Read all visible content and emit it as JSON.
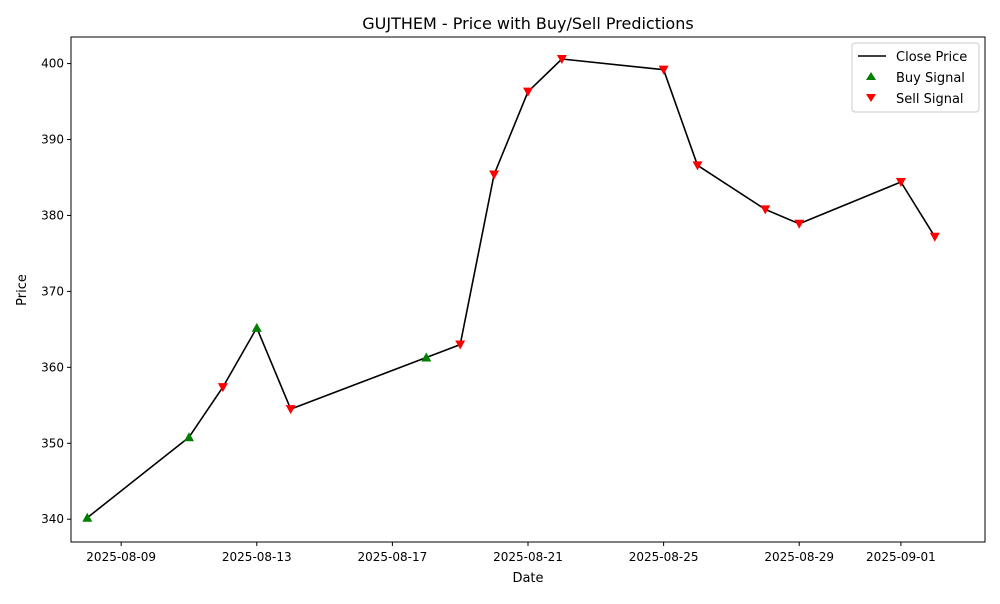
{
  "chart_data": {
    "type": "line",
    "title": "GUJTHEM - Price with Buy/Sell Predictions",
    "xlabel": "Date",
    "ylabel": "Price",
    "xlim": [
      "2025-08-07",
      "2025-09-03"
    ],
    "ylim": [
      337.0,
      403.5
    ],
    "x_ticks": [
      "2025-08-09",
      "2025-08-13",
      "2025-08-17",
      "2025-08-21",
      "2025-08-25",
      "2025-08-29",
      "2025-09-01"
    ],
    "y_ticks": [
      340,
      350,
      360,
      370,
      380,
      390,
      400
    ],
    "grid": false,
    "legend_position": "top-right",
    "series": [
      {
        "name": "Close Price",
        "kind": "line",
        "color": "#000000",
        "points": [
          {
            "x": "2025-08-08",
            "y": 340.2
          },
          {
            "x": "2025-08-11",
            "y": 350.8
          },
          {
            "x": "2025-08-12",
            "y": 357.4
          },
          {
            "x": "2025-08-13",
            "y": 365.2
          },
          {
            "x": "2025-08-14",
            "y": 354.5
          },
          {
            "x": "2025-08-18",
            "y": 361.3
          },
          {
            "x": "2025-08-19",
            "y": 363.0
          },
          {
            "x": "2025-08-20",
            "y": 385.4
          },
          {
            "x": "2025-08-21",
            "y": 396.3
          },
          {
            "x": "2025-08-22",
            "y": 400.6
          },
          {
            "x": "2025-08-25",
            "y": 399.2
          },
          {
            "x": "2025-08-26",
            "y": 386.6
          },
          {
            "x": "2025-08-28",
            "y": 380.8
          },
          {
            "x": "2025-08-29",
            "y": 378.9
          },
          {
            "x": "2025-09-01",
            "y": 384.4
          },
          {
            "x": "2025-09-02",
            "y": 377.2
          }
        ]
      },
      {
        "name": "Buy Signal",
        "kind": "scatter",
        "marker": "triangle-up",
        "color": "#008000",
        "points": [
          {
            "x": "2025-08-08",
            "y": 340.2
          },
          {
            "x": "2025-08-11",
            "y": 350.8
          },
          {
            "x": "2025-08-13",
            "y": 365.2
          },
          {
            "x": "2025-08-18",
            "y": 361.3
          }
        ]
      },
      {
        "name": "Sell Signal",
        "kind": "scatter",
        "marker": "triangle-down",
        "color": "#ff0000",
        "points": [
          {
            "x": "2025-08-12",
            "y": 357.4
          },
          {
            "x": "2025-08-14",
            "y": 354.5
          },
          {
            "x": "2025-08-19",
            "y": 363.0
          },
          {
            "x": "2025-08-20",
            "y": 385.4
          },
          {
            "x": "2025-08-21",
            "y": 396.3
          },
          {
            "x": "2025-08-22",
            "y": 400.6
          },
          {
            "x": "2025-08-25",
            "y": 399.2
          },
          {
            "x": "2025-08-26",
            "y": 386.6
          },
          {
            "x": "2025-08-28",
            "y": 380.8
          },
          {
            "x": "2025-08-29",
            "y": 378.9
          },
          {
            "x": "2025-09-01",
            "y": 384.4
          },
          {
            "x": "2025-09-02",
            "y": 377.2
          }
        ]
      }
    ]
  }
}
